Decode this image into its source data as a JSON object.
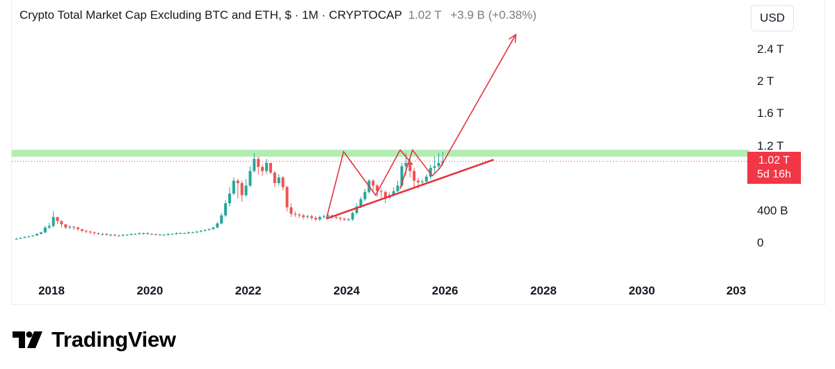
{
  "header": {
    "title": "Crypto Total Market Cap Excluding BTC and ETH, $ · 1M · CRYPTOCAP",
    "last_value": "1.02 T",
    "change": "+3.9 B (+0.38%)"
  },
  "currency_button": "USD",
  "price_tag": {
    "value": "1.02 T",
    "countdown": "5d 16h"
  },
  "logo_text": "TradingView",
  "colors": {
    "up": "#26a69a",
    "down": "#ef5350",
    "drawing": "#e0343f",
    "resistance": "#9be59b",
    "price_tag": "#f23645"
  },
  "chart_data": {
    "type": "candlestick",
    "title": "Crypto Total Market Cap Excluding BTC and ETH, $ · 1M · CRYPTOCAP",
    "interval": "1M",
    "x_tick_labels": [
      "2018",
      "2020",
      "2022",
      "2024",
      "2026",
      "2028",
      "2030",
      "203"
    ],
    "y_tick_labels": [
      "2.4 T",
      "2 T",
      "1.6 T",
      "1.2 T",
      "400 B",
      "0"
    ],
    "y_unit": "USD",
    "x_range": [
      2017.2,
      2031.3
    ],
    "y_range": [
      -0.1,
      2.8
    ],
    "current_price": 1.02,
    "series": [
      {
        "closes": [
          0.06,
          0.07,
          0.08,
          0.09,
          0.1,
          0.12,
          0.14,
          0.2,
          0.22,
          0.33,
          0.28,
          0.24,
          0.2,
          0.21,
          0.2,
          0.18,
          0.16,
          0.15,
          0.14,
          0.13,
          0.12,
          0.12,
          0.11,
          0.11,
          0.1,
          0.1,
          0.11,
          0.11,
          0.12,
          0.12,
          0.13,
          0.13,
          0.12,
          0.12,
          0.11,
          0.11,
          0.11,
          0.12,
          0.12,
          0.13,
          0.13,
          0.13,
          0.14,
          0.14,
          0.15,
          0.16,
          0.17,
          0.18,
          0.2,
          0.25,
          0.35,
          0.5,
          0.62,
          0.78,
          0.75,
          0.6,
          0.72,
          0.9,
          1.05,
          0.95,
          0.9,
          1.0,
          0.88,
          0.75,
          0.82,
          0.7,
          0.45,
          0.37,
          0.36,
          0.35,
          0.33,
          0.34,
          0.32,
          0.3,
          0.33,
          0.34,
          0.35,
          0.33,
          0.32,
          0.31,
          0.3,
          0.3,
          0.38,
          0.46,
          0.55,
          0.64,
          0.78,
          0.72,
          0.65,
          0.64,
          0.57,
          0.6,
          0.65,
          0.72,
          0.96,
          1.0,
          0.9,
          0.78,
          0.76,
          0.77,
          0.83,
          0.94,
          0.96,
          1.0,
          1.02
        ],
        "highs": [
          0.07,
          0.08,
          0.09,
          0.1,
          0.11,
          0.13,
          0.15,
          0.22,
          0.26,
          0.4,
          0.33,
          0.29,
          0.24,
          0.23,
          0.22,
          0.21,
          0.18,
          0.17,
          0.16,
          0.15,
          0.14,
          0.13,
          0.13,
          0.12,
          0.12,
          0.11,
          0.12,
          0.12,
          0.13,
          0.13,
          0.14,
          0.14,
          0.14,
          0.13,
          0.12,
          0.12,
          0.12,
          0.13,
          0.13,
          0.14,
          0.14,
          0.14,
          0.15,
          0.15,
          0.16,
          0.17,
          0.18,
          0.19,
          0.21,
          0.27,
          0.38,
          0.54,
          0.7,
          0.82,
          0.8,
          0.78,
          0.8,
          0.96,
          1.12,
          1.08,
          0.98,
          1.05,
          1.0,
          0.9,
          0.86,
          0.84,
          0.72,
          0.5,
          0.4,
          0.38,
          0.37,
          0.36,
          0.36,
          0.34,
          0.35,
          0.36,
          0.37,
          0.36,
          0.35,
          0.33,
          0.32,
          0.32,
          0.4,
          0.5,
          0.58,
          0.68,
          0.8,
          0.8,
          0.74,
          0.68,
          0.66,
          0.63,
          0.7,
          0.78,
          1.0,
          1.12,
          1.06,
          0.94,
          0.82,
          0.8,
          0.86,
          0.98,
          1.08,
          1.12,
          1.14
        ],
        "lows": [
          0.05,
          0.06,
          0.07,
          0.08,
          0.09,
          0.1,
          0.12,
          0.13,
          0.18,
          0.2,
          0.24,
          0.2,
          0.18,
          0.18,
          0.17,
          0.16,
          0.14,
          0.13,
          0.12,
          0.11,
          0.11,
          0.1,
          0.1,
          0.09,
          0.09,
          0.09,
          0.09,
          0.1,
          0.1,
          0.11,
          0.11,
          0.11,
          0.11,
          0.11,
          0.1,
          0.1,
          0.1,
          0.1,
          0.11,
          0.11,
          0.12,
          0.12,
          0.12,
          0.13,
          0.13,
          0.14,
          0.15,
          0.16,
          0.17,
          0.19,
          0.24,
          0.33,
          0.46,
          0.6,
          0.56,
          0.52,
          0.58,
          0.7,
          0.88,
          0.86,
          0.84,
          0.86,
          0.86,
          0.7,
          0.72,
          0.66,
          0.4,
          0.33,
          0.33,
          0.32,
          0.3,
          0.31,
          0.29,
          0.28,
          0.28,
          0.31,
          0.32,
          0.31,
          0.3,
          0.28,
          0.28,
          0.28,
          0.28,
          0.36,
          0.44,
          0.53,
          0.62,
          0.64,
          0.58,
          0.54,
          0.5,
          0.55,
          0.58,
          0.64,
          0.7,
          0.84,
          0.82,
          0.7,
          0.68,
          0.72,
          0.74,
          0.8,
          0.88,
          0.92,
          0.96
        ]
      }
    ],
    "resistance_level": 1.12,
    "annotations": [
      "rising support trendline",
      "zigzag projection",
      "projected breakout arrow"
    ]
  }
}
